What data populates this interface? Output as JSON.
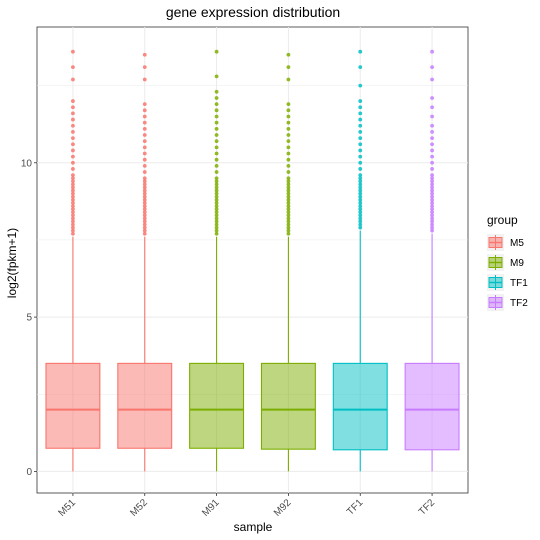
{
  "chart_data": {
    "type": "box",
    "title": "gene expression distribution",
    "xlabel": "sample",
    "ylabel": "log2(fpkm+1)",
    "ylim": [
      -0.7,
      14.4
    ],
    "yticks": [
      0,
      5,
      10
    ],
    "grid": true,
    "legend": {
      "title": "group",
      "placement": "right",
      "entries": [
        {
          "label": "M5",
          "color": "#F8766D"
        },
        {
          "label": "M9",
          "color": "#7CAE00"
        },
        {
          "label": "TF1",
          "color": "#00BFC4"
        },
        {
          "label": "TF2",
          "color": "#C77CFF"
        }
      ]
    },
    "categories": [
      "M51",
      "M52",
      "M91",
      "M92",
      "TF1",
      "TF2"
    ],
    "boxes": [
      {
        "sample": "M51",
        "group": "M5",
        "min": 0,
        "q1": 0.75,
        "median": 2.0,
        "q3": 3.5,
        "max": 7.6,
        "outliers": [
          7.7,
          7.8,
          7.9,
          8.0,
          8.1,
          8.2,
          8.3,
          8.4,
          8.5,
          8.6,
          8.7,
          8.8,
          8.9,
          9.0,
          9.1,
          9.2,
          9.3,
          9.4,
          9.5,
          9.6,
          9.8,
          10.0,
          10.2,
          10.4,
          10.6,
          10.8,
          11.0,
          11.2,
          11.4,
          11.6,
          11.8,
          12.0,
          12.7,
          13.1,
          13.6
        ]
      },
      {
        "sample": "M52",
        "group": "M5",
        "min": 0,
        "q1": 0.75,
        "median": 2.0,
        "q3": 3.5,
        "max": 7.6,
        "outliers": [
          7.7,
          7.8,
          7.9,
          8.0,
          8.1,
          8.2,
          8.3,
          8.4,
          8.5,
          8.6,
          8.7,
          8.8,
          8.9,
          9.0,
          9.1,
          9.2,
          9.3,
          9.4,
          9.5,
          9.7,
          9.9,
          10.1,
          10.3,
          10.5,
          10.7,
          10.9,
          11.1,
          11.3,
          11.5,
          11.7,
          11.9,
          12.7,
          13.1,
          13.5
        ]
      },
      {
        "sample": "M91",
        "group": "M9",
        "min": 0,
        "q1": 0.75,
        "median": 2.0,
        "q3": 3.5,
        "max": 7.6,
        "outliers": [
          7.7,
          7.8,
          7.9,
          8.0,
          8.1,
          8.2,
          8.3,
          8.4,
          8.5,
          8.6,
          8.7,
          8.8,
          8.9,
          9.0,
          9.1,
          9.2,
          9.3,
          9.4,
          9.5,
          9.7,
          9.9,
          10.1,
          10.3,
          10.5,
          10.7,
          10.9,
          11.1,
          11.3,
          11.5,
          11.7,
          11.9,
          12.1,
          12.3,
          12.8,
          13.6
        ]
      },
      {
        "sample": "M92",
        "group": "M9",
        "min": 0,
        "q1": 0.72,
        "median": 2.0,
        "q3": 3.5,
        "max": 7.6,
        "outliers": [
          7.7,
          7.8,
          7.9,
          8.0,
          8.1,
          8.2,
          8.3,
          8.4,
          8.5,
          8.6,
          8.7,
          8.8,
          8.9,
          9.0,
          9.1,
          9.2,
          9.3,
          9.4,
          9.5,
          9.7,
          9.9,
          10.1,
          10.3,
          10.5,
          10.7,
          10.9,
          11.1,
          11.3,
          11.5,
          11.7,
          11.9,
          12.7,
          13.1,
          13.5
        ]
      },
      {
        "sample": "TF1",
        "group": "TF1",
        "min": 0,
        "q1": 0.7,
        "median": 2.0,
        "q3": 3.5,
        "max": 7.8,
        "outliers": [
          7.9,
          8.0,
          8.1,
          8.2,
          8.3,
          8.4,
          8.5,
          8.6,
          8.7,
          8.8,
          8.9,
          9.0,
          9.1,
          9.2,
          9.3,
          9.4,
          9.5,
          9.6,
          9.8,
          10.0,
          10.2,
          10.4,
          10.6,
          10.8,
          11.0,
          11.2,
          11.4,
          11.6,
          11.8,
          12.0,
          12.5,
          13.1,
          13.6
        ]
      },
      {
        "sample": "TF2",
        "group": "TF2",
        "min": 0,
        "q1": 0.7,
        "median": 2.0,
        "q3": 3.5,
        "max": 7.7,
        "outliers": [
          7.8,
          7.9,
          8.0,
          8.1,
          8.2,
          8.3,
          8.4,
          8.5,
          8.6,
          8.7,
          8.8,
          8.9,
          9.0,
          9.1,
          9.2,
          9.3,
          9.4,
          9.5,
          9.6,
          9.8,
          10.0,
          10.2,
          10.4,
          10.6,
          10.8,
          11.0,
          11.2,
          11.5,
          11.8,
          12.1,
          12.7,
          13.1,
          13.6
        ]
      }
    ]
  }
}
